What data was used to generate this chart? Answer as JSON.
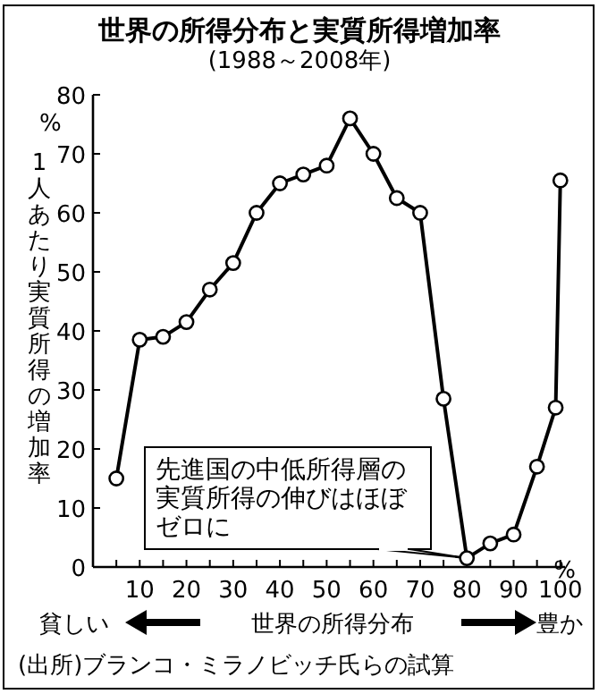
{
  "chart_data": {
    "type": "line",
    "title": "世界の所得分布と実質所得増加率",
    "subtitle": "(1988～2008年)",
    "xlabel": "世界の所得分布",
    "ylabel": "1人あたり実質所得の増加率",
    "x": [
      5,
      10,
      15,
      20,
      25,
      30,
      35,
      40,
      45,
      50,
      55,
      60,
      65,
      70,
      75,
      80,
      85,
      90,
      95,
      99,
      100
    ],
    "values": [
      15,
      38.5,
      39,
      41.5,
      47,
      51.5,
      60,
      65,
      66.5,
      68,
      76,
      70,
      62.5,
      60,
      28.5,
      1.5,
      4,
      5.5,
      17,
      27,
      65.5
    ],
    "color": "#000000",
    "marker": "circle",
    "line_style": "solid",
    "xlim": [
      0,
      101
    ],
    "ylim": [
      0,
      80
    ],
    "xticks": [
      {
        "value": 5,
        "label": null
      },
      10,
      {
        "value": 15,
        "label": null
      },
      20,
      {
        "value": 25,
        "label": null
      },
      30,
      {
        "value": 35,
        "label": null
      },
      40,
      {
        "value": 45,
        "label": null
      },
      50,
      {
        "value": 55,
        "label": null
      },
      60,
      {
        "value": 65,
        "label": null
      },
      70,
      {
        "value": 75,
        "label": null
      },
      80,
      {
        "value": 85,
        "label": null
      },
      90,
      {
        "value": 95,
        "label": null
      },
      100
    ],
    "yticks": [
      0,
      10,
      20,
      30,
      40,
      50,
      60,
      70,
      80
    ],
    "annotations": [
      {
        "text": "先進国の中低所得層の実質所得の伸びはほぼゼロに",
        "x": 80,
        "y": 1.5
      },
      "貧しい",
      "豊か",
      "%",
      "%",
      "(出所)ブランコ・ミラノビッチ氏らの試算"
    ]
  }
}
